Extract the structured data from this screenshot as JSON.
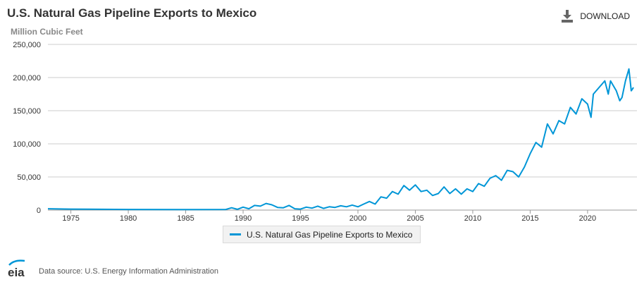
{
  "header": {
    "title": "U.S. Natural Gas Pipeline Exports to Mexico",
    "download_label": "DOWNLOAD",
    "download_icon": "download-icon"
  },
  "footer": {
    "logo_text": "eia",
    "source_text": "Data source: U.S. Energy Information Administration"
  },
  "colors": {
    "series": "#0096d7",
    "grid": "#cccccc",
    "logo_blue": "#0096d7"
  },
  "chart_data": {
    "type": "line",
    "title": "U.S. Natural Gas Pipeline Exports to Mexico",
    "ylabel": "Million Cubic Feet",
    "xlabel": "",
    "xlim": [
      1973,
      2024.3
    ],
    "ylim": [
      0,
      250000
    ],
    "grid": true,
    "legend_position": "bottom-center",
    "x_ticks": [
      1975,
      1980,
      1985,
      1990,
      1995,
      2000,
      2005,
      2010,
      2015,
      2020
    ],
    "y_ticks": [
      0,
      50000,
      100000,
      150000,
      200000,
      250000
    ],
    "y_tick_labels": [
      "0",
      "50,000",
      "100,000",
      "150,000",
      "200,000",
      "250,000"
    ],
    "series": [
      {
        "name": "U.S. Natural Gas Pipeline Exports to Mexico",
        "color": "#0096d7",
        "x": [
          1973,
          1975,
          1980,
          1985,
          1988.5,
          1989,
          1989.5,
          1990,
          1990.5,
          1991,
          1991.5,
          1992,
          1992.5,
          1993,
          1993.5,
          1994,
          1994.5,
          1995,
          1995.5,
          1996,
          1996.5,
          1997,
          1997.5,
          1998,
          1998.5,
          1999,
          1999.5,
          2000,
          2000.5,
          2001,
          2001.5,
          2002,
          2002.5,
          2003,
          2003.5,
          2004,
          2004.5,
          2005,
          2005.5,
          2006,
          2006.5,
          2007,
          2007.5,
          2008,
          2008.5,
          2009,
          2009.5,
          2010,
          2010.5,
          2011,
          2011.5,
          2012,
          2012.5,
          2013,
          2013.5,
          2014,
          2014.5,
          2015,
          2015.5,
          2016,
          2016.5,
          2017,
          2017.5,
          2018,
          2018.5,
          2019,
          2019.5,
          2020,
          2020.3,
          2020.5,
          2021,
          2021.5,
          2021.8,
          2022,
          2022.5,
          2022.8,
          2023,
          2023.3,
          2023.6,
          2023.8,
          2024
        ],
        "values": [
          2000,
          1500,
          1000,
          800,
          1000,
          3500,
          1200,
          4500,
          2000,
          7000,
          6000,
          10000,
          8000,
          4000,
          3500,
          7000,
          2000,
          1500,
          4500,
          3000,
          6000,
          2500,
          5000,
          4000,
          6500,
          5000,
          7500,
          5000,
          9000,
          13000,
          9000,
          20000,
          18000,
          28000,
          24000,
          37000,
          30000,
          38000,
          28000,
          30000,
          22000,
          25000,
          35000,
          25000,
          32000,
          24000,
          32000,
          28000,
          40000,
          36000,
          48000,
          52000,
          45000,
          60000,
          58000,
          50000,
          65000,
          85000,
          102000,
          95000,
          130000,
          115000,
          135000,
          130000,
          155000,
          145000,
          168000,
          160000,
          140000,
          175000,
          185000,
          195000,
          175000,
          195000,
          180000,
          165000,
          170000,
          195000,
          213000,
          180000,
          185000
        ]
      }
    ]
  }
}
